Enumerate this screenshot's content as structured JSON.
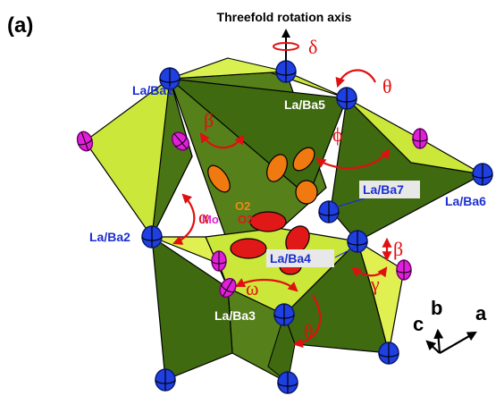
{
  "panel_label": "(a)",
  "axis_title": "Threefold rotation axis",
  "site_labels": {
    "la_ba1": "La/Ba1",
    "la_ba2": "La/Ba2",
    "la_ba3": "La/Ba3",
    "la_ba4": "La/Ba4",
    "la_ba5": "La/Ba5",
    "la_ba6": "La/Ba6",
    "la_ba7": "La/Ba7",
    "o2": "O2",
    "o3": "O3",
    "mo": "Mo"
  },
  "angle_labels": {
    "delta": "δ",
    "theta_top": "θ",
    "theta_bottom": "θ",
    "beta_left": "β",
    "beta_right": "β",
    "phi": "ϕ",
    "alpha": "α",
    "gamma": "γ",
    "omega": "ω"
  },
  "axes_labels": {
    "a": "a",
    "b": "b",
    "c": "c"
  },
  "colors": {
    "la_ba_atom": "#1f3fe0",
    "mo_atom": "#e020d8",
    "o2_atom": "#f07a10",
    "o3_atom": "#e01818",
    "polyhedron_dark": "#3f6a10",
    "polyhedron_light": "#cbe83a",
    "angle_arrow": "#e01010",
    "label_blue": "#1a2fd0",
    "label_orange": "#ee8a12",
    "label_magenta": "#e020d0"
  }
}
